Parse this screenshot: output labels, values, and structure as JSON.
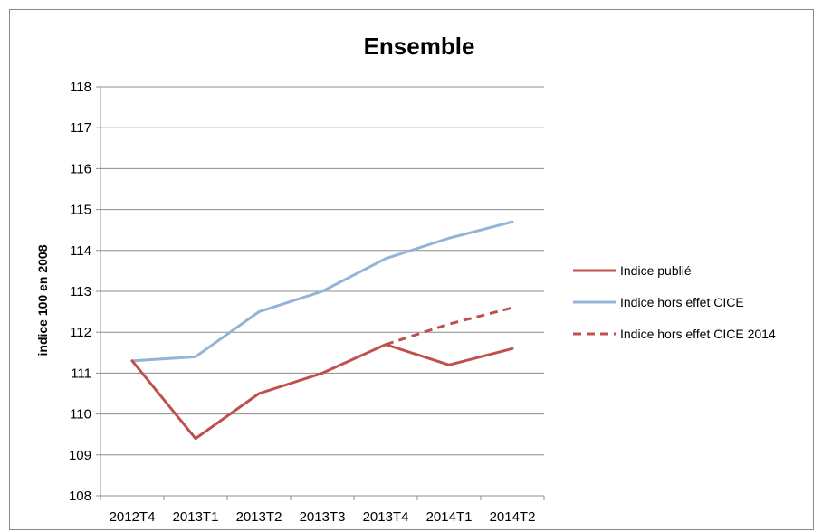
{
  "chart_data": {
    "type": "line",
    "title": "Ensemble",
    "xlabel": "",
    "ylabel": "indice 100 en 2008",
    "categories": [
      "2012T4",
      "2013T1",
      "2013T2",
      "2013T3",
      "2013T4",
      "2014T1",
      "2014T2"
    ],
    "ylim": [
      108,
      118
    ],
    "yticks": [
      108,
      109,
      110,
      111,
      112,
      113,
      114,
      115,
      116,
      117,
      118
    ],
    "grid": true,
    "legend_position": "right",
    "series": [
      {
        "name": "Indice publié",
        "color": "#c0504d",
        "dashed": false,
        "values": [
          111.3,
          109.4,
          110.5,
          111.0,
          111.7,
          111.2,
          111.6
        ]
      },
      {
        "name": "Indice hors effet CICE",
        "color": "#95b3d7",
        "dashed": false,
        "values": [
          111.3,
          111.4,
          112.5,
          113.0,
          113.8,
          114.3,
          114.7
        ]
      },
      {
        "name": "Indice hors effet CICE 2014",
        "color": "#c0504d",
        "dashed": true,
        "values": [
          null,
          null,
          null,
          null,
          111.7,
          112.2,
          112.6
        ]
      }
    ]
  }
}
